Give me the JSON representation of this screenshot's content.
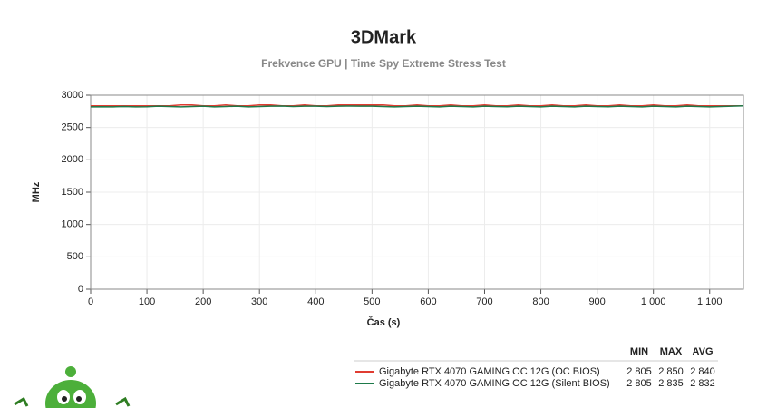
{
  "chart_data": {
    "type": "line",
    "title": "3DMark",
    "subtitle": "Frekvence GPU | Time Spy Extreme Stress Test",
    "x_label": "Čas (s)",
    "y_label": "MHz",
    "x": [
      0,
      20,
      40,
      60,
      80,
      100,
      120,
      140,
      160,
      180,
      200,
      220,
      240,
      260,
      280,
      300,
      320,
      340,
      360,
      380,
      400,
      420,
      440,
      460,
      480,
      500,
      520,
      540,
      560,
      580,
      600,
      620,
      640,
      660,
      680,
      700,
      720,
      740,
      760,
      780,
      800,
      820,
      840,
      860,
      880,
      900,
      920,
      940,
      960,
      980,
      1000,
      1020,
      1040,
      1060,
      1080,
      1100,
      1120,
      1140,
      1160
    ],
    "series": [
      {
        "name": "Gigabyte RTX 4070 GAMING OC 12G (OC BIOS)",
        "color": "#e03c31",
        "values": [
          2835,
          2835,
          2835,
          2835,
          2835,
          2835,
          2835,
          2835,
          2850,
          2850,
          2835,
          2835,
          2850,
          2835,
          2835,
          2850,
          2850,
          2835,
          2835,
          2850,
          2835,
          2835,
          2850,
          2850,
          2850,
          2850,
          2850,
          2835,
          2835,
          2850,
          2835,
          2835,
          2850,
          2835,
          2835,
          2850,
          2835,
          2835,
          2850,
          2835,
          2835,
          2850,
          2835,
          2835,
          2850,
          2835,
          2835,
          2850,
          2835,
          2835,
          2850,
          2835,
          2835,
          2850,
          2835,
          2835,
          2835,
          2835,
          2835
        ],
        "stats": [
          {
            "value": 2805,
            "label": "2 805"
          },
          {
            "value": 2850,
            "label": "2 850"
          },
          {
            "value": 2840,
            "label": "2 840"
          }
        ]
      },
      {
        "name": "Gigabyte RTX 4070 GAMING OC 12G (Silent BIOS)",
        "color": "#1e7a4a",
        "values": [
          2820,
          2822,
          2820,
          2825,
          2820,
          2822,
          2830,
          2825,
          2820,
          2825,
          2830,
          2820,
          2825,
          2830,
          2820,
          2825,
          2830,
          2832,
          2825,
          2830,
          2830,
          2825,
          2830,
          2832,
          2830,
          2830,
          2825,
          2820,
          2825,
          2830,
          2825,
          2820,
          2830,
          2825,
          2820,
          2830,
          2825,
          2822,
          2830,
          2825,
          2820,
          2830,
          2825,
          2820,
          2830,
          2825,
          2822,
          2830,
          2825,
          2820,
          2830,
          2825,
          2820,
          2830,
          2825,
          2820,
          2825,
          2830,
          2835
        ],
        "stats": [
          {
            "value": 2805,
            "label": "2 805"
          },
          {
            "value": 2835,
            "label": "2 835"
          },
          {
            "value": 2832,
            "label": "2 832"
          }
        ]
      }
    ],
    "stats_header": [
      "MIN",
      "MAX",
      "AVG"
    ],
    "xlim": [
      0,
      1160
    ],
    "ylim": [
      0,
      3000
    ],
    "xticks": [
      0,
      100,
      200,
      300,
      400,
      500,
      600,
      700,
      800,
      900,
      {
        "value": 1000,
        "label": "1 000"
      },
      {
        "value": 1100,
        "label": "1 100"
      }
    ],
    "yticks": [
      0,
      500,
      1000,
      1500,
      2000,
      2500,
      3000
    ],
    "grid": true
  }
}
